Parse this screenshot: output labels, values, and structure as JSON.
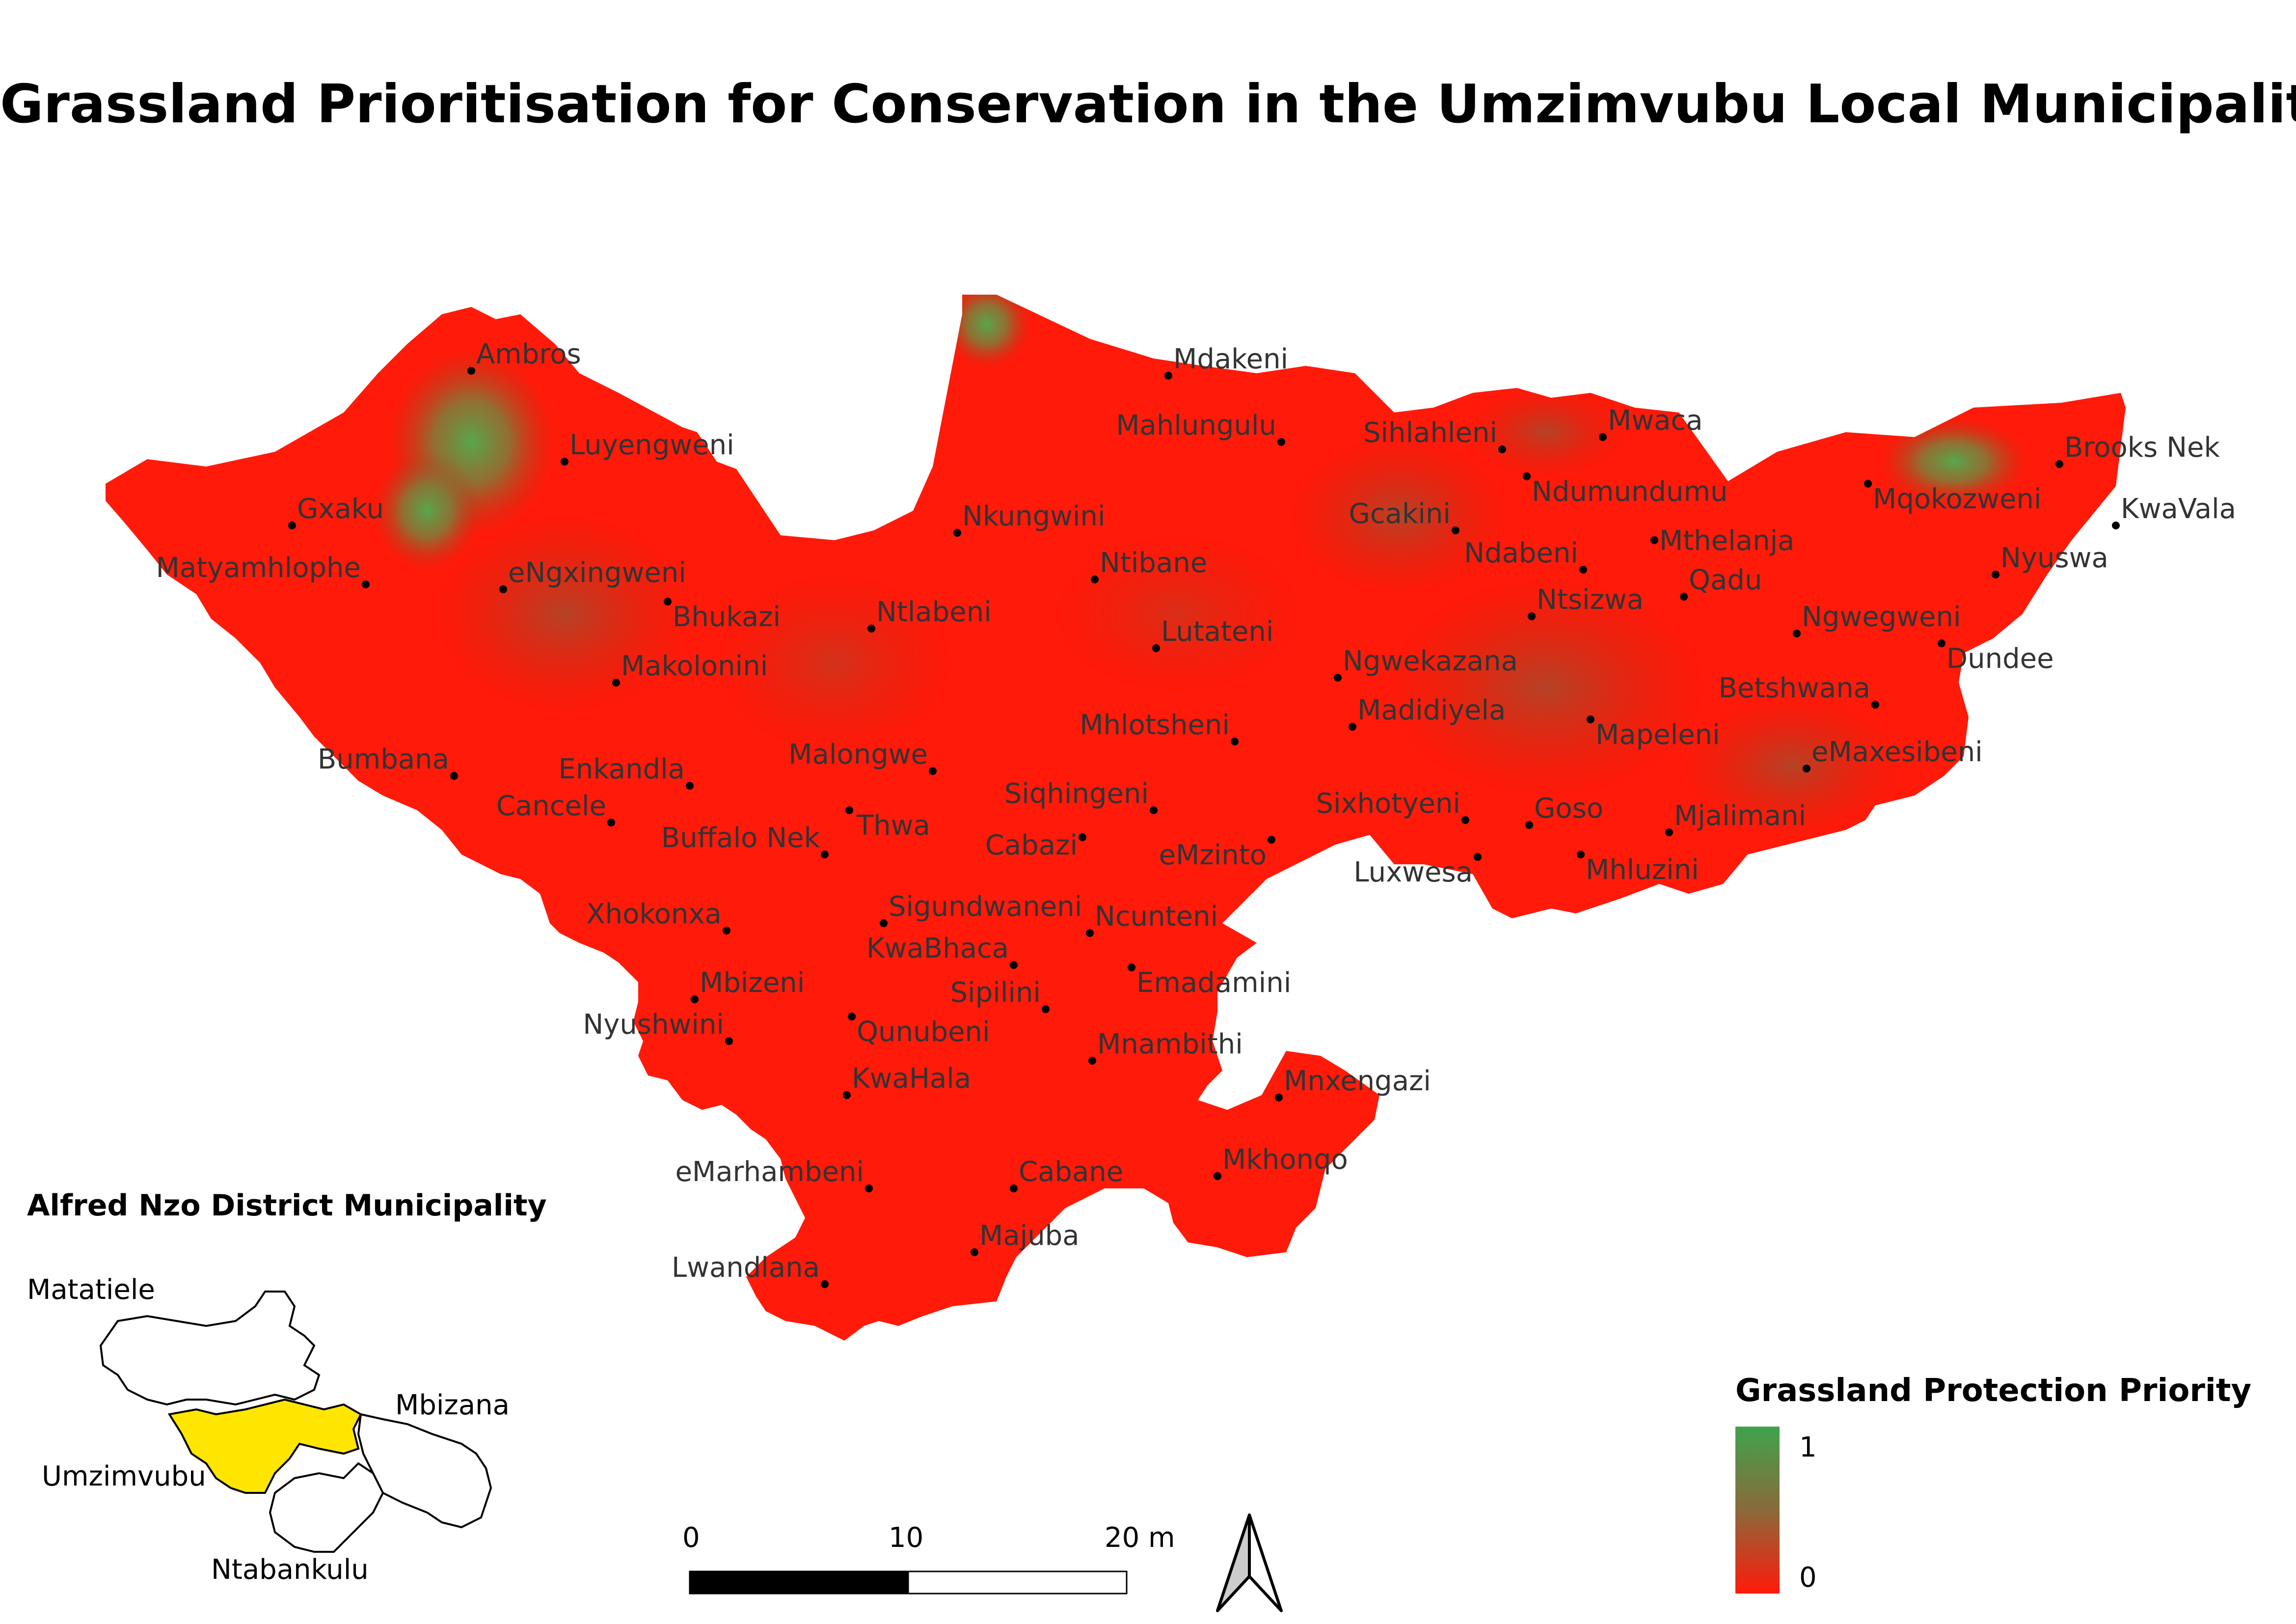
{
  "title": "Grassland Prioritisation for Conservation in the Umzimvubu Local Municipality",
  "colors": {
    "low": "#ff0000",
    "high": "#3fa34d",
    "mid": "#8a6a3a",
    "inset_highlight": "#ffe600"
  },
  "places": [
    {
      "name": "Ambros"
    },
    {
      "name": "Luyengweni"
    },
    {
      "name": "Gxaku"
    },
    {
      "name": "Matyamhlophe"
    },
    {
      "name": "eNgxingweni"
    },
    {
      "name": "Bhukazi"
    },
    {
      "name": "Makolonini"
    },
    {
      "name": "Bumbana"
    },
    {
      "name": "Enkandla"
    },
    {
      "name": "Cancele"
    },
    {
      "name": "Malongwe"
    },
    {
      "name": "Thwa"
    },
    {
      "name": "Buffalo Nek"
    },
    {
      "name": "Ntlabeni"
    },
    {
      "name": "Nkungwini"
    },
    {
      "name": "Ntibane"
    },
    {
      "name": "Lutateni"
    },
    {
      "name": "Mdakeni"
    },
    {
      "name": "Mahlungulu"
    },
    {
      "name": "Sihlahleni"
    },
    {
      "name": "Mwaca"
    },
    {
      "name": "Ndumundumu"
    },
    {
      "name": "Gcakini"
    },
    {
      "name": "Ndabeni"
    },
    {
      "name": "Mthelanja"
    },
    {
      "name": "Ntsizwa"
    },
    {
      "name": "Qadu"
    },
    {
      "name": "Mqokozweni"
    },
    {
      "name": "Brooks Nek"
    },
    {
      "name": "KwaVala"
    },
    {
      "name": "Nyuswa"
    },
    {
      "name": "Ngwegweni"
    },
    {
      "name": "Dundee"
    },
    {
      "name": "Betshwana"
    },
    {
      "name": "eMaxesibeni"
    },
    {
      "name": "Ngwekazana"
    },
    {
      "name": "Madidiyela"
    },
    {
      "name": "Mhlotsheni"
    },
    {
      "name": "Mapeleni"
    },
    {
      "name": "Siqhingeni"
    },
    {
      "name": "Cabazi"
    },
    {
      "name": "eMzinto"
    },
    {
      "name": "Sixhotyeni"
    },
    {
      "name": "Goso"
    },
    {
      "name": "Mjalimani"
    },
    {
      "name": "Luxwesa"
    },
    {
      "name": "Mhluzini"
    },
    {
      "name": "Xhokonxa"
    },
    {
      "name": "Sigundwaneni"
    },
    {
      "name": "Ncunteni"
    },
    {
      "name": "KwaBhaca"
    },
    {
      "name": "Emadamini"
    },
    {
      "name": "Mbizeni"
    },
    {
      "name": "Sipilini"
    },
    {
      "name": "Nyushwini"
    },
    {
      "name": "Qunubeni"
    },
    {
      "name": "Mnambithi"
    },
    {
      "name": "Mnxengazi"
    },
    {
      "name": "KwaHala"
    },
    {
      "name": "eMarhambeni"
    },
    {
      "name": "Cabane"
    },
    {
      "name": "Mkhonqo"
    },
    {
      "name": "Majuba"
    },
    {
      "name": "Lwandlana"
    }
  ],
  "inset": {
    "title": "Alfred Nzo District Municipality",
    "labels": {
      "matatiele": "Matatiele",
      "mbizana": "Mbizana",
      "umzimvubu": "Umzimvubu",
      "ntabankulu": "Ntabankulu"
    }
  },
  "scale_bar": {
    "labels": [
      "0",
      "10",
      "20 m"
    ]
  },
  "north_arrow": {
    "icon": "north-arrow-icon"
  },
  "legend": {
    "title": "Grassland Protection Priority",
    "max_label": "1",
    "min_label": "0"
  }
}
